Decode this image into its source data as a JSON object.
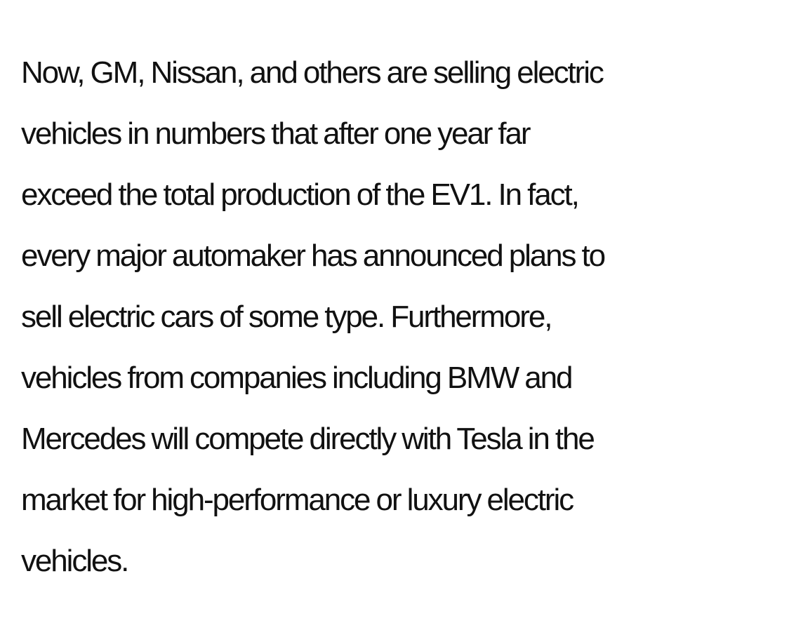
{
  "article": {
    "lines": [
      "Now, GM, Nissan, and others are selling electric",
      "vehicles in numbers that after one year far",
      "exceed the total production of the EV1. In fact,",
      "every major automaker has announced plans to",
      "sell electric cars of some type. Furthermore,",
      "vehicles from companies including BMW and",
      "Mercedes will compete directly with Tesla in the",
      "market for high-performance or luxury electric",
      "vehicles."
    ]
  },
  "colors": {
    "background": "#ffffff",
    "text": "#111111"
  }
}
